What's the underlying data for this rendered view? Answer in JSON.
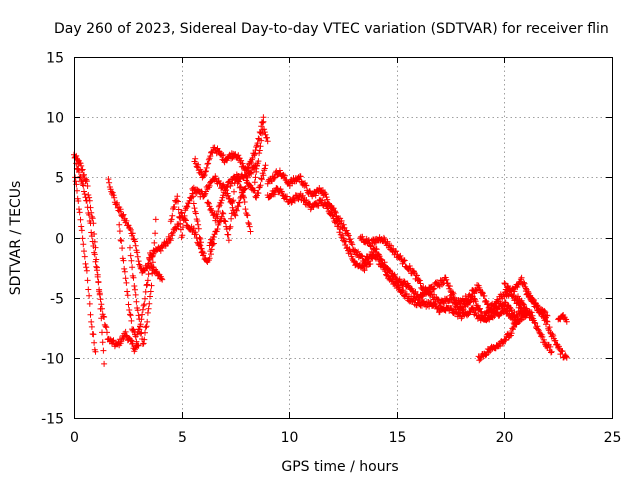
{
  "chart_data": {
    "type": "scatter",
    "title": "Day 260 of 2023, Sidereal Day-to-day VTEC variation (SDTVAR) for receiver flin",
    "xlabel": "GPS time / hours",
    "ylabel": "SDTVAR / TECUs",
    "xlim": [
      0,
      25
    ],
    "ylim": [
      -15,
      15
    ],
    "xticks": [
      0,
      5,
      10,
      15,
      20,
      25
    ],
    "xtick_labels": [
      "0",
      "5",
      "10",
      "15",
      "20",
      "25"
    ],
    "yticks": [
      -15,
      -10,
      -5,
      0,
      5,
      10,
      15
    ],
    "ytick_labels": [
      "-15",
      "-10",
      "-5",
      "0",
      "5",
      "10",
      "15"
    ],
    "grid": true,
    "marker": "+",
    "series": [
      {
        "name": "SDTVAR",
        "color": "#ff0000",
        "tracks": [
          {
            "x": [
              0.0,
              0.3,
              0.6,
              0.9,
              1.2,
              1.4
            ],
            "y": [
              6.8,
              6.0,
              4.5,
              1.0,
              -5.0,
              -10.5
            ]
          },
          {
            "x": [
              0.1,
              0.4,
              0.7,
              1.0,
              1.3,
              1.6,
              2.0,
              2.4,
              2.8,
              3.0
            ],
            "y": [
              6.0,
              4.5,
              2.0,
              -2.0,
              -6.0,
              -8.5,
              -9.0,
              -8.0,
              -9.2,
              -9.0
            ]
          },
          {
            "x": [
              0.05,
              0.2,
              0.4,
              0.6,
              0.8,
              1.0
            ],
            "y": [
              5.0,
              3.0,
              0.0,
              -3.0,
              -7.0,
              -9.5
            ]
          },
          {
            "x": [
              1.6,
              1.9,
              2.2,
              2.5,
              2.8,
              3.0,
              3.2,
              3.5,
              3.8,
              4.1
            ],
            "y": [
              4.8,
              3.0,
              2.0,
              1.0,
              0.0,
              -2.0,
              -3.0,
              -2.0,
              -3.0,
              -3.5
            ]
          },
          {
            "x": [
              2.1,
              2.3,
              2.5,
              2.7,
              2.9,
              3.1,
              3.3,
              3.5
            ],
            "y": [
              1.0,
              -2.0,
              -5.0,
              -7.5,
              -8.5,
              -7.0,
              -5.0,
              -2.5
            ]
          },
          {
            "x": [
              2.6,
              2.8,
              3.0,
              3.2,
              3.4,
              3.6,
              3.8
            ],
            "y": [
              -1.0,
              -4.0,
              -6.5,
              -9.0,
              -7.0,
              -4.0,
              1.5
            ]
          },
          {
            "x": [
              3.5,
              4.0,
              4.5,
              4.8,
              5.0,
              5.3,
              5.6,
              5.9,
              6.2,
              6.5
            ],
            "y": [
              -1.5,
              -1.0,
              0.0,
              1.0,
              2.0,
              1.0,
              0.5,
              -1.0,
              -2.0,
              -0.5
            ]
          },
          {
            "x": [
              4.5,
              4.8,
              5.0,
              5.2,
              5.5,
              5.8,
              6.0
            ],
            "y": [
              1.5,
              3.5,
              0.0,
              2.5,
              3.5,
              0.5,
              -1.5
            ]
          },
          {
            "x": [
              5.6,
              6.0,
              6.5,
              7.0,
              7.5,
              8.0,
              8.5,
              8.8
            ],
            "y": [
              6.5,
              5.0,
              7.5,
              6.5,
              7.0,
              5.5,
              7.5,
              10.0
            ]
          },
          {
            "x": [
              5.5,
              6.0,
              6.5,
              7.0,
              7.5,
              8.0,
              8.5
            ],
            "y": [
              4.0,
              3.5,
              5.0,
              4.0,
              5.0,
              5.0,
              6.0
            ]
          },
          {
            "x": [
              6.2,
              6.6,
              7.0,
              7.5,
              8.0,
              8.5,
              8.9
            ],
            "y": [
              3.0,
              1.5,
              4.0,
              2.0,
              4.5,
              3.5,
              6.0
            ]
          },
          {
            "x": [
              6.3,
              6.6,
              6.9,
              7.2,
              7.5,
              7.8,
              8.2
            ],
            "y": [
              -0.5,
              0.5,
              2.0,
              0.0,
              5.0,
              4.0,
              0.5
            ]
          },
          {
            "x": [
              8.4,
              8.6,
              8.8,
              9.0
            ],
            "y": [
              4.5,
              7.0,
              9.5,
              8.0
            ]
          },
          {
            "x": [
              9.0,
              9.5,
              10.0,
              10.5,
              11.0,
              11.5,
              12.0,
              12.5,
              13.0,
              13.5,
              14.0,
              14.5,
              15.0,
              15.5,
              16.0,
              16.5,
              17.0,
              17.5,
              18.0,
              18.5,
              19.0,
              19.5,
              20.0,
              20.5,
              21.0
            ],
            "y": [
              4.5,
              5.5,
              4.5,
              5.0,
              3.5,
              4.0,
              2.5,
              1.0,
              -1.0,
              -2.0,
              -1.0,
              -2.5,
              -3.5,
              -4.0,
              -5.0,
              -4.5,
              -5.5,
              -5.0,
              -6.0,
              -5.0,
              -6.5,
              -6.0,
              -5.5,
              -6.5,
              -6.0
            ]
          },
          {
            "x": [
              9.0,
              9.5,
              10.0,
              10.5,
              11.0,
              11.5,
              12.0,
              12.5,
              13.0,
              13.5,
              14.0,
              14.5,
              15.0,
              15.5,
              16.0,
              16.5,
              17.0,
              17.5,
              18.0,
              18.5,
              19.0,
              19.5,
              20.0,
              20.5,
              21.0
            ],
            "y": [
              3.5,
              4.0,
              3.0,
              3.5,
              2.5,
              3.0,
              2.0,
              0.0,
              -2.0,
              -2.5,
              -1.5,
              -3.0,
              -4.0,
              -5.0,
              -5.5,
              -5.5,
              -6.0,
              -6.0,
              -6.5,
              -6.0,
              -7.0,
              -6.5,
              -6.0,
              -7.0,
              -6.5
            ]
          },
          {
            "x": [
              13.3,
              13.8,
              14.3,
              14.8,
              15.3,
              15.8,
              16.3,
              16.8,
              17.3,
              17.8,
              18.3,
              18.8,
              19.3,
              19.8,
              20.3,
              20.8,
              21.3
            ],
            "y": [
              0.0,
              -0.5,
              0.0,
              -1.0,
              -2.0,
              -3.0,
              -4.5,
              -4.0,
              -3.5,
              -5.5,
              -5.0,
              -4.0,
              -6.0,
              -5.0,
              -4.5,
              -6.0,
              -6.5
            ]
          },
          {
            "x": [
              18.8,
              19.2,
              19.6,
              20.0,
              20.3,
              20.6
            ],
            "y": [
              -10.0,
              -9.5,
              -9.0,
              -8.5,
              -8.0,
              -7.0
            ]
          },
          {
            "x": [
              20.0,
              20.4,
              20.8,
              21.2,
              21.6,
              22.0
            ],
            "y": [
              -4.0,
              -4.5,
              -3.5,
              -5.0,
              -6.0,
              -6.5
            ]
          },
          {
            "x": [
              20.6,
              21.0,
              21.4,
              21.8,
              22.2
            ],
            "y": [
              -5.0,
              -6.0,
              -7.0,
              -8.5,
              -9.5
            ]
          },
          {
            "x": [
              21.0,
              21.4,
              21.8,
              22.2,
              22.6,
              22.9
            ],
            "y": [
              -4.5,
              -5.5,
              -6.5,
              -8.0,
              -9.5,
              -10.0
            ]
          },
          {
            "x": [
              22.5,
              22.7,
              22.9
            ],
            "y": [
              -7.0,
              -6.5,
              -7.0
            ]
          }
        ]
      }
    ]
  }
}
